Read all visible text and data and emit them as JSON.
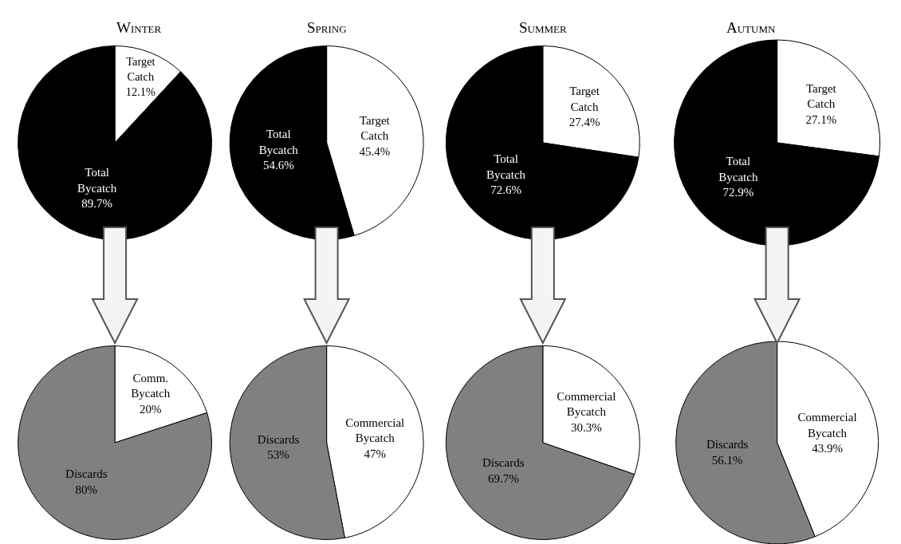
{
  "chart_data": [
    {
      "type": "pie",
      "title": "Winter",
      "categories": [
        "Target Catch",
        "Total Bycatch"
      ],
      "values": [
        12.1,
        89.7
      ],
      "colors": [
        "#ffffff",
        "#000000"
      ],
      "value_labels": [
        "12.1%",
        "89.7%"
      ]
    },
    {
      "type": "pie",
      "title": "Spring",
      "categories": [
        "Target Catch",
        "Total Bycatch"
      ],
      "values": [
        45.4,
        54.6
      ],
      "colors": [
        "#ffffff",
        "#000000"
      ],
      "value_labels": [
        "45.4%",
        "54.6%"
      ]
    },
    {
      "type": "pie",
      "title": "Summer",
      "categories": [
        "Target Catch",
        "Total Bycatch"
      ],
      "values": [
        27.4,
        72.6
      ],
      "colors": [
        "#ffffff",
        "#000000"
      ],
      "value_labels": [
        "27.4%",
        "72.6%"
      ]
    },
    {
      "type": "pie",
      "title": "Autumn",
      "categories": [
        "Target Catch",
        "Total Bycatch"
      ],
      "values": [
        27.1,
        72.9
      ],
      "colors": [
        "#ffffff",
        "#000000"
      ],
      "value_labels": [
        "27.1%",
        "72.9%"
      ]
    },
    {
      "type": "pie",
      "categories": [
        "Comm. Bycatch",
        "Discards"
      ],
      "values": [
        20,
        80
      ],
      "colors": [
        "#ffffff",
        "#808080"
      ],
      "value_labels": [
        "20%",
        "80%"
      ]
    },
    {
      "type": "pie",
      "categories": [
        "Commercial Bycatch",
        "Discards"
      ],
      "values": [
        47,
        53
      ],
      "colors": [
        "#ffffff",
        "#808080"
      ],
      "value_labels": [
        "47%",
        "53%"
      ]
    },
    {
      "type": "pie",
      "categories": [
        "Commercial Bycatch",
        "Discards"
      ],
      "values": [
        30.3,
        69.7
      ],
      "colors": [
        "#ffffff",
        "#808080"
      ],
      "value_labels": [
        "30.3%",
        "69.7%"
      ]
    },
    {
      "type": "pie",
      "categories": [
        "Commercial Bycatch",
        "Discards"
      ],
      "values": [
        43.9,
        56.1
      ],
      "colors": [
        "#ffffff",
        "#808080"
      ],
      "value_labels": [
        "43.9%",
        "56.1%"
      ]
    }
  ]
}
